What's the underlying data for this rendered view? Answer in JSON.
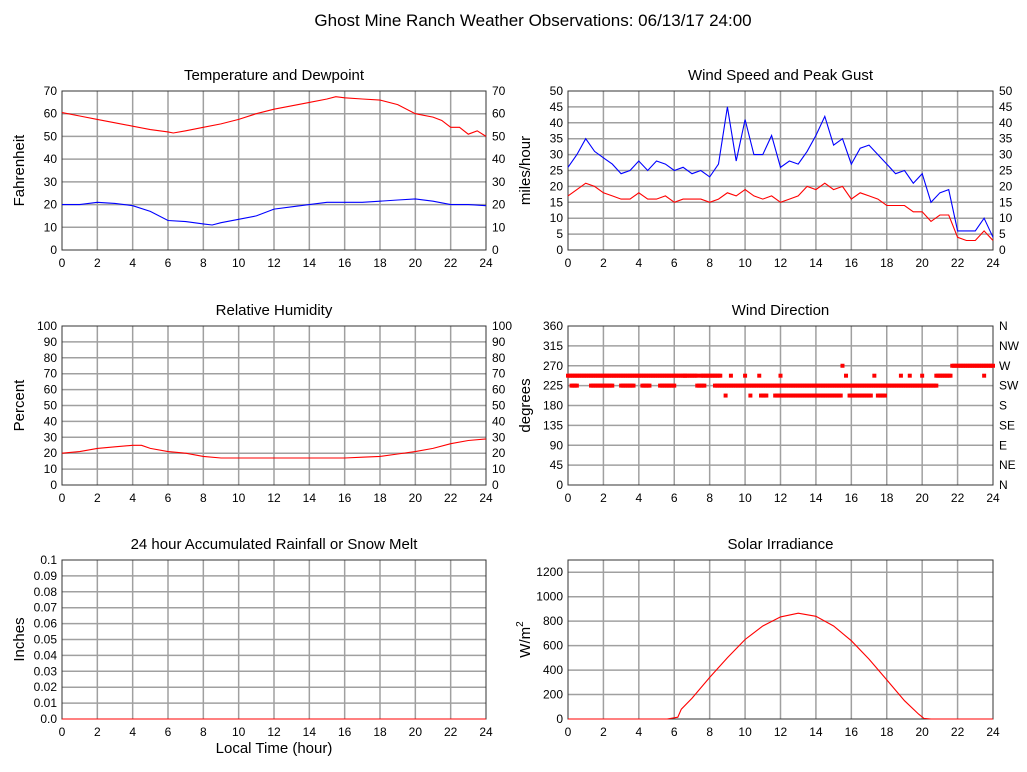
{
  "title": "Ghost Mine Ranch Weather Observations: 06/13/17 24:00",
  "x_axis_label": "Local Time (hour)",
  "colors": {
    "red": "#ff0000",
    "blue": "#0000ff",
    "grid": "#a0a0a0"
  },
  "chart_data": [
    {
      "id": "temp",
      "type": "line",
      "title": "Temperature and Dewpoint",
      "ylabel": "Fahrenheit",
      "xlim": [
        0,
        24
      ],
      "xticks": [
        0,
        2,
        4,
        6,
        8,
        10,
        12,
        14,
        16,
        18,
        20,
        22,
        24
      ],
      "ylim": [
        0,
        70
      ],
      "yticks": [
        0,
        10,
        20,
        30,
        40,
        50,
        60,
        70
      ],
      "right_ticks": [
        0,
        10,
        20,
        30,
        40,
        50,
        60,
        70
      ],
      "grid": true,
      "series": [
        {
          "color": "#ff0000",
          "x": [
            0,
            1,
            2,
            3,
            4,
            5,
            6,
            6.3,
            7,
            8,
            9,
            10,
            11,
            12,
            13,
            14,
            15,
            15.5,
            16,
            17,
            18,
            19,
            20,
            21,
            21.5,
            22,
            22.5,
            23,
            23.5,
            24
          ],
          "y": [
            60.5,
            59,
            57.5,
            56,
            54.5,
            53,
            52,
            51.5,
            52.5,
            54,
            55.5,
            57.5,
            60,
            62,
            63.5,
            65,
            66.5,
            67.5,
            67,
            66.5,
            66,
            64,
            60,
            58.5,
            57,
            54,
            54,
            51,
            52.5,
            50
          ]
        },
        {
          "color": "#0000ff",
          "x": [
            0,
            1,
            2,
            3,
            4,
            5,
            6,
            7,
            8,
            8.5,
            9,
            10,
            11,
            12,
            13,
            14,
            15,
            16,
            17,
            18,
            19,
            20,
            21,
            22,
            23,
            24
          ],
          "y": [
            20,
            20,
            21,
            20.5,
            19.5,
            17,
            13,
            12.5,
            11.5,
            11,
            12,
            13.5,
            15,
            18,
            19,
            20,
            21,
            21,
            21,
            21.5,
            22,
            22.5,
            21.5,
            20,
            20,
            19.5
          ]
        }
      ]
    },
    {
      "id": "wind",
      "type": "line",
      "title": "Wind Speed and Peak Gust",
      "ylabel": "miles/hour",
      "xlim": [
        0,
        24
      ],
      "xticks": [
        0,
        2,
        4,
        6,
        8,
        10,
        12,
        14,
        16,
        18,
        20,
        22,
        24
      ],
      "ylim": [
        0,
        50
      ],
      "yticks": [
        0,
        5,
        10,
        15,
        20,
        25,
        30,
        35,
        40,
        45,
        50
      ],
      "right_ticks": [
        0,
        5,
        10,
        15,
        20,
        25,
        30,
        35,
        40,
        45,
        50
      ],
      "grid": true,
      "series": [
        {
          "color": "#0000ff",
          "x": [
            0,
            0.5,
            1,
            1.5,
            2,
            2.5,
            3,
            3.5,
            4,
            4.5,
            5,
            5.5,
            6,
            6.5,
            7,
            7.5,
            8,
            8.5,
            9,
            9.5,
            10,
            10.5,
            11,
            11.5,
            12,
            12.5,
            13,
            13.5,
            14,
            14.5,
            15,
            15.5,
            16,
            16.5,
            17,
            17.5,
            18,
            18.5,
            19,
            19.5,
            20,
            20.5,
            21,
            21.5,
            22,
            22.5,
            23,
            23.5,
            24
          ],
          "y": [
            26,
            30,
            35,
            31,
            29,
            27,
            24,
            25,
            28,
            25,
            28,
            27,
            25,
            26,
            24,
            25,
            23,
            27,
            45,
            28,
            41,
            30,
            30,
            36,
            26,
            28,
            27,
            31,
            36,
            42,
            33,
            35,
            27,
            32,
            33,
            30,
            27,
            24,
            25,
            21,
            24,
            15,
            18,
            19,
            6,
            6,
            6,
            10,
            4
          ]
        },
        {
          "color": "#ff0000",
          "x": [
            0,
            0.5,
            1,
            1.5,
            2,
            2.5,
            3,
            3.5,
            4,
            4.5,
            5,
            5.5,
            6,
            6.5,
            7,
            7.5,
            8,
            8.5,
            9,
            9.5,
            10,
            10.5,
            11,
            11.5,
            12,
            12.5,
            13,
            13.5,
            14,
            14.5,
            15,
            15.5,
            16,
            16.5,
            17,
            17.5,
            18,
            18.5,
            19,
            19.5,
            20,
            20.5,
            21,
            21.5,
            22,
            22.5,
            23,
            23.5,
            24
          ],
          "y": [
            17,
            19,
            21,
            20,
            18,
            17,
            16,
            16,
            18,
            16,
            16,
            17,
            15,
            16,
            16,
            16,
            15,
            16,
            18,
            17,
            19,
            17,
            16,
            17,
            15,
            16,
            17,
            20,
            19,
            21,
            19,
            20,
            16,
            18,
            17,
            16,
            14,
            14,
            14,
            12,
            12,
            9,
            11,
            11,
            4,
            3,
            3,
            6,
            3
          ]
        }
      ]
    },
    {
      "id": "rh",
      "type": "line",
      "title": "Relative Humidity",
      "ylabel": "Percent",
      "xlim": [
        0,
        24
      ],
      "xticks": [
        0,
        2,
        4,
        6,
        8,
        10,
        12,
        14,
        16,
        18,
        20,
        22,
        24
      ],
      "ylim": [
        0,
        100
      ],
      "yticks": [
        0,
        10,
        20,
        30,
        40,
        50,
        60,
        70,
        80,
        90,
        100
      ],
      "right_ticks": [
        0,
        10,
        20,
        30,
        40,
        50,
        60,
        70,
        80,
        90,
        100
      ],
      "grid": true,
      "series": [
        {
          "color": "#ff0000",
          "x": [
            0,
            1,
            2,
            3,
            4,
            4.5,
            5,
            6,
            7,
            8,
            9,
            10,
            11,
            12,
            13,
            14,
            15,
            16,
            17,
            18,
            19,
            20,
            21,
            22,
            23,
            24
          ],
          "y": [
            20,
            21,
            23,
            24,
            25,
            25,
            23,
            21,
            20,
            18,
            17,
            17,
            17,
            17,
            17,
            17,
            17,
            17,
            17.5,
            18,
            19.5,
            21,
            23,
            26,
            28,
            29
          ]
        }
      ]
    },
    {
      "id": "dir",
      "type": "scatter",
      "title": "Wind Direction",
      "ylabel": "degrees",
      "xlim": [
        0,
        24
      ],
      "xticks": [
        0,
        2,
        4,
        6,
        8,
        10,
        12,
        14,
        16,
        18,
        20,
        22,
        24
      ],
      "ylim": [
        0,
        360
      ],
      "yticks": [
        0,
        45,
        90,
        135,
        180,
        225,
        270,
        315,
        360
      ],
      "right_ticks": [
        "N",
        "NE",
        "E",
        "SE",
        "S",
        "SW",
        "W",
        "NW",
        "N"
      ],
      "grid": true,
      "color": "#ff0000",
      "point_runs": [
        {
          "deg": 270,
          "runs": [
            [
              15.5,
              15.5
            ],
            [
              21.7,
              24
            ]
          ]
        },
        {
          "deg": 247.5,
          "runs": [
            [
              0,
              4.3
            ],
            [
              4.4,
              6.6
            ],
            [
              6.6,
              7.3
            ],
            [
              7.5,
              8.6
            ],
            [
              9.2,
              9.2
            ],
            [
              10,
              10
            ],
            [
              10.8,
              10.8
            ],
            [
              12,
              12
            ],
            [
              15.7,
              15.7
            ],
            [
              17.3,
              17.3
            ],
            [
              18.8,
              18.8
            ],
            [
              19.3,
              19.3
            ],
            [
              20,
              20
            ],
            [
              20.8,
              21.6
            ],
            [
              23.5,
              23.5
            ]
          ]
        },
        {
          "deg": 225,
          "runs": [
            [
              0.2,
              0.5
            ],
            [
              1.3,
              2.5
            ],
            [
              3,
              3.7
            ],
            [
              4.2,
              4.6
            ],
            [
              5.2,
              6
            ],
            [
              7.3,
              7.7
            ],
            [
              8.3,
              20.8
            ]
          ]
        },
        {
          "deg": 202.5,
          "runs": [
            [
              8.9,
              8.9
            ],
            [
              10.3,
              10.3
            ],
            [
              10.9,
              11.2
            ],
            [
              11.7,
              15.4
            ],
            [
              15.9,
              17.1
            ],
            [
              17.5,
              17.9
            ]
          ]
        }
      ]
    },
    {
      "id": "rain",
      "type": "line",
      "title": "24 hour Accumulated Rainfall or Snow Melt",
      "ylabel": "Inches",
      "xlim": [
        0,
        24
      ],
      "xticks": [
        0,
        2,
        4,
        6,
        8,
        10,
        12,
        14,
        16,
        18,
        20,
        22,
        24
      ],
      "ylim": [
        0,
        0.1
      ],
      "yticks": [
        0,
        0.01,
        0.02,
        0.03,
        0.04,
        0.05,
        0.06,
        0.07,
        0.08,
        0.09,
        0.1
      ],
      "grid": true,
      "series": [
        {
          "color": "#ff0000",
          "x": [
            0,
            24
          ],
          "y": [
            0,
            0
          ]
        }
      ]
    },
    {
      "id": "solar",
      "type": "line",
      "title": "Solar Irradiance",
      "ylabel": "W/m",
      "ylabel_sup": "2",
      "xlim": [
        0,
        24
      ],
      "xticks": [
        0,
        2,
        4,
        6,
        8,
        10,
        12,
        14,
        16,
        18,
        20,
        22,
        24
      ],
      "ylim": [
        0,
        1300
      ],
      "yticks": [
        0,
        200,
        400,
        600,
        800,
        1000,
        1200
      ],
      "grid": true,
      "series": [
        {
          "color": "#ff0000",
          "x": [
            0,
            5.6,
            6.2,
            6.4,
            7,
            8,
            9,
            10,
            11,
            12,
            13,
            14,
            15,
            16,
            17,
            18,
            19,
            19.8,
            20.1,
            20.5,
            24
          ],
          "y": [
            0,
            0,
            15,
            80,
            170,
            340,
            500,
            650,
            760,
            835,
            865,
            840,
            760,
            640,
            490,
            320,
            150,
            40,
            5,
            0,
            0
          ]
        }
      ]
    }
  ]
}
